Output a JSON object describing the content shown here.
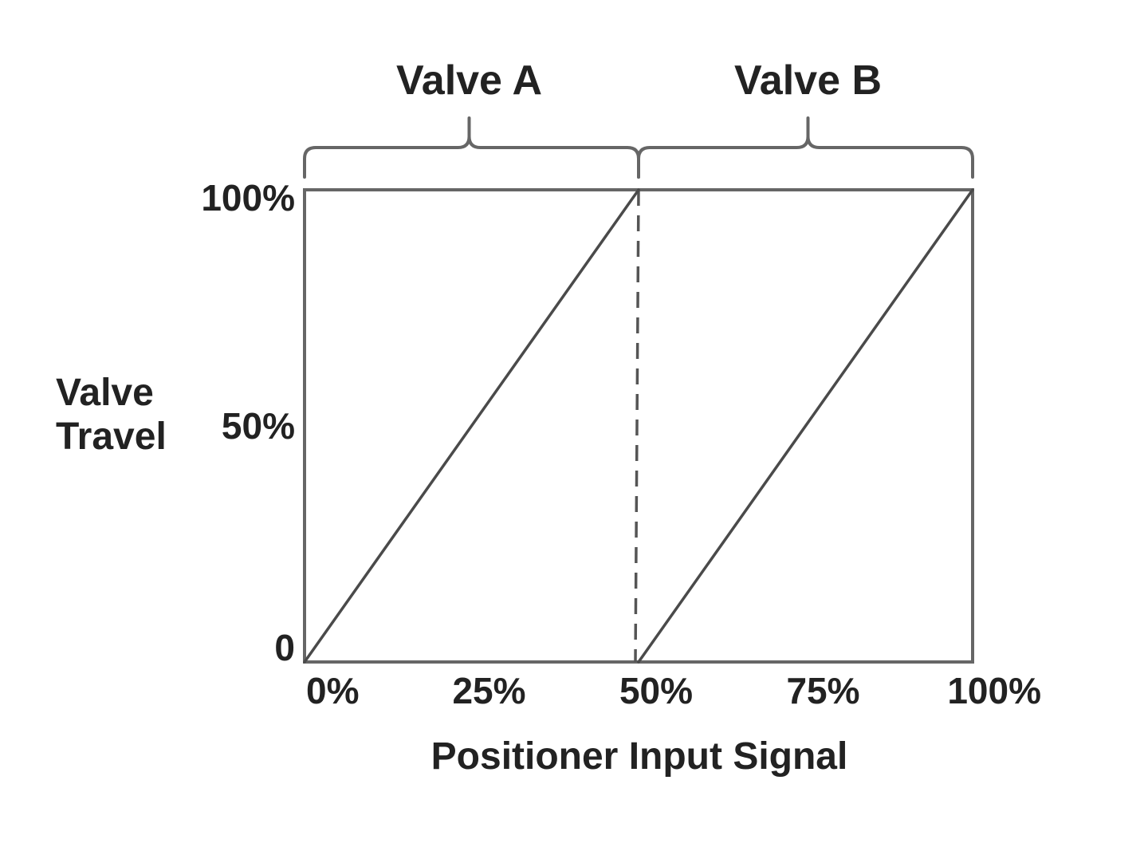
{
  "chart_data": {
    "type": "line",
    "title": "",
    "xlabel": "Positioner Input Signal",
    "ylabel": "Valve Travel",
    "ylabel_lines": [
      "Valve",
      "Travel"
    ],
    "x_ticks": [
      {
        "value": 0,
        "label": "0%"
      },
      {
        "value": 25,
        "label": "25%"
      },
      {
        "value": 50,
        "label": "50%"
      },
      {
        "value": 75,
        "label": "75%"
      },
      {
        "value": 100,
        "label": "100%"
      }
    ],
    "y_ticks": [
      {
        "value": 0,
        "label": "0"
      },
      {
        "value": 50,
        "label": "50%"
      },
      {
        "value": 100,
        "label": "100%"
      }
    ],
    "xlim": [
      0,
      100
    ],
    "ylim": [
      0,
      100
    ],
    "grid": false,
    "series": [
      {
        "x": [
          0,
          50
        ],
        "y": [
          0,
          100
        ]
      },
      {
        "x": [
          50,
          100
        ],
        "y": [
          0,
          100
        ]
      }
    ],
    "ranges": [
      {
        "label": "Valve A",
        "x_start": 0,
        "x_end": 50
      },
      {
        "label": "Valve B",
        "x_start": 50,
        "x_end": 100
      }
    ],
    "split_marker_x": 50,
    "line_color": "#4a4a4a",
    "frame_color": "#666666",
    "text_color": "#222222"
  }
}
